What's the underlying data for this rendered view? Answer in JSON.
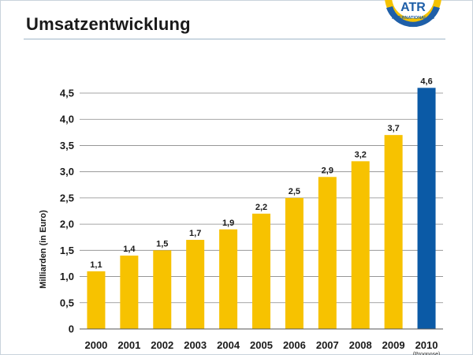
{
  "header": {
    "title": "Umsatzentwicklung",
    "logo": {
      "brand": "ATR",
      "subtitle": "INTERNATIONAL AG",
      "icon": "atr-logo-icon",
      "colors": {
        "ring": "#f5c200",
        "arc": "#1f5fa8",
        "text": "#1f5fa8"
      }
    }
  },
  "chart_data": {
    "type": "bar",
    "categories": [
      "2000",
      "2001",
      "2002",
      "2003",
      "2004",
      "2005",
      "2006",
      "2007",
      "2008",
      "2009",
      "2010"
    ],
    "values": [
      1.1,
      1.4,
      1.5,
      1.7,
      1.9,
      2.2,
      2.5,
      2.9,
      3.2,
      3.7,
      4.6
    ],
    "value_labels": [
      "1,1",
      "1,4",
      "1,5",
      "1,7",
      "1,9",
      "2,2",
      "2,5",
      "2,9",
      "3,2",
      "3,7",
      "4,6"
    ],
    "yticks": [
      0,
      0.5,
      1.0,
      1.5,
      2.0,
      2.5,
      3.0,
      3.5,
      4.0,
      4.5
    ],
    "ytick_labels": [
      "0",
      "0,5",
      "1,0",
      "1,5",
      "2,0",
      "2,5",
      "3,0",
      "3,5",
      "4,0",
      "4,5"
    ],
    "ylim": [
      0,
      4.5
    ],
    "ylabel": "Milliarden (in Euro)",
    "xlabel": "",
    "grid": true,
    "category_note": {
      "category": "2010",
      "text": "(Prognose)"
    },
    "colors": {
      "bar": "#f7c200",
      "highlight": "#0b5aa6",
      "grid": "#888888"
    },
    "highlight_category": "2010"
  }
}
